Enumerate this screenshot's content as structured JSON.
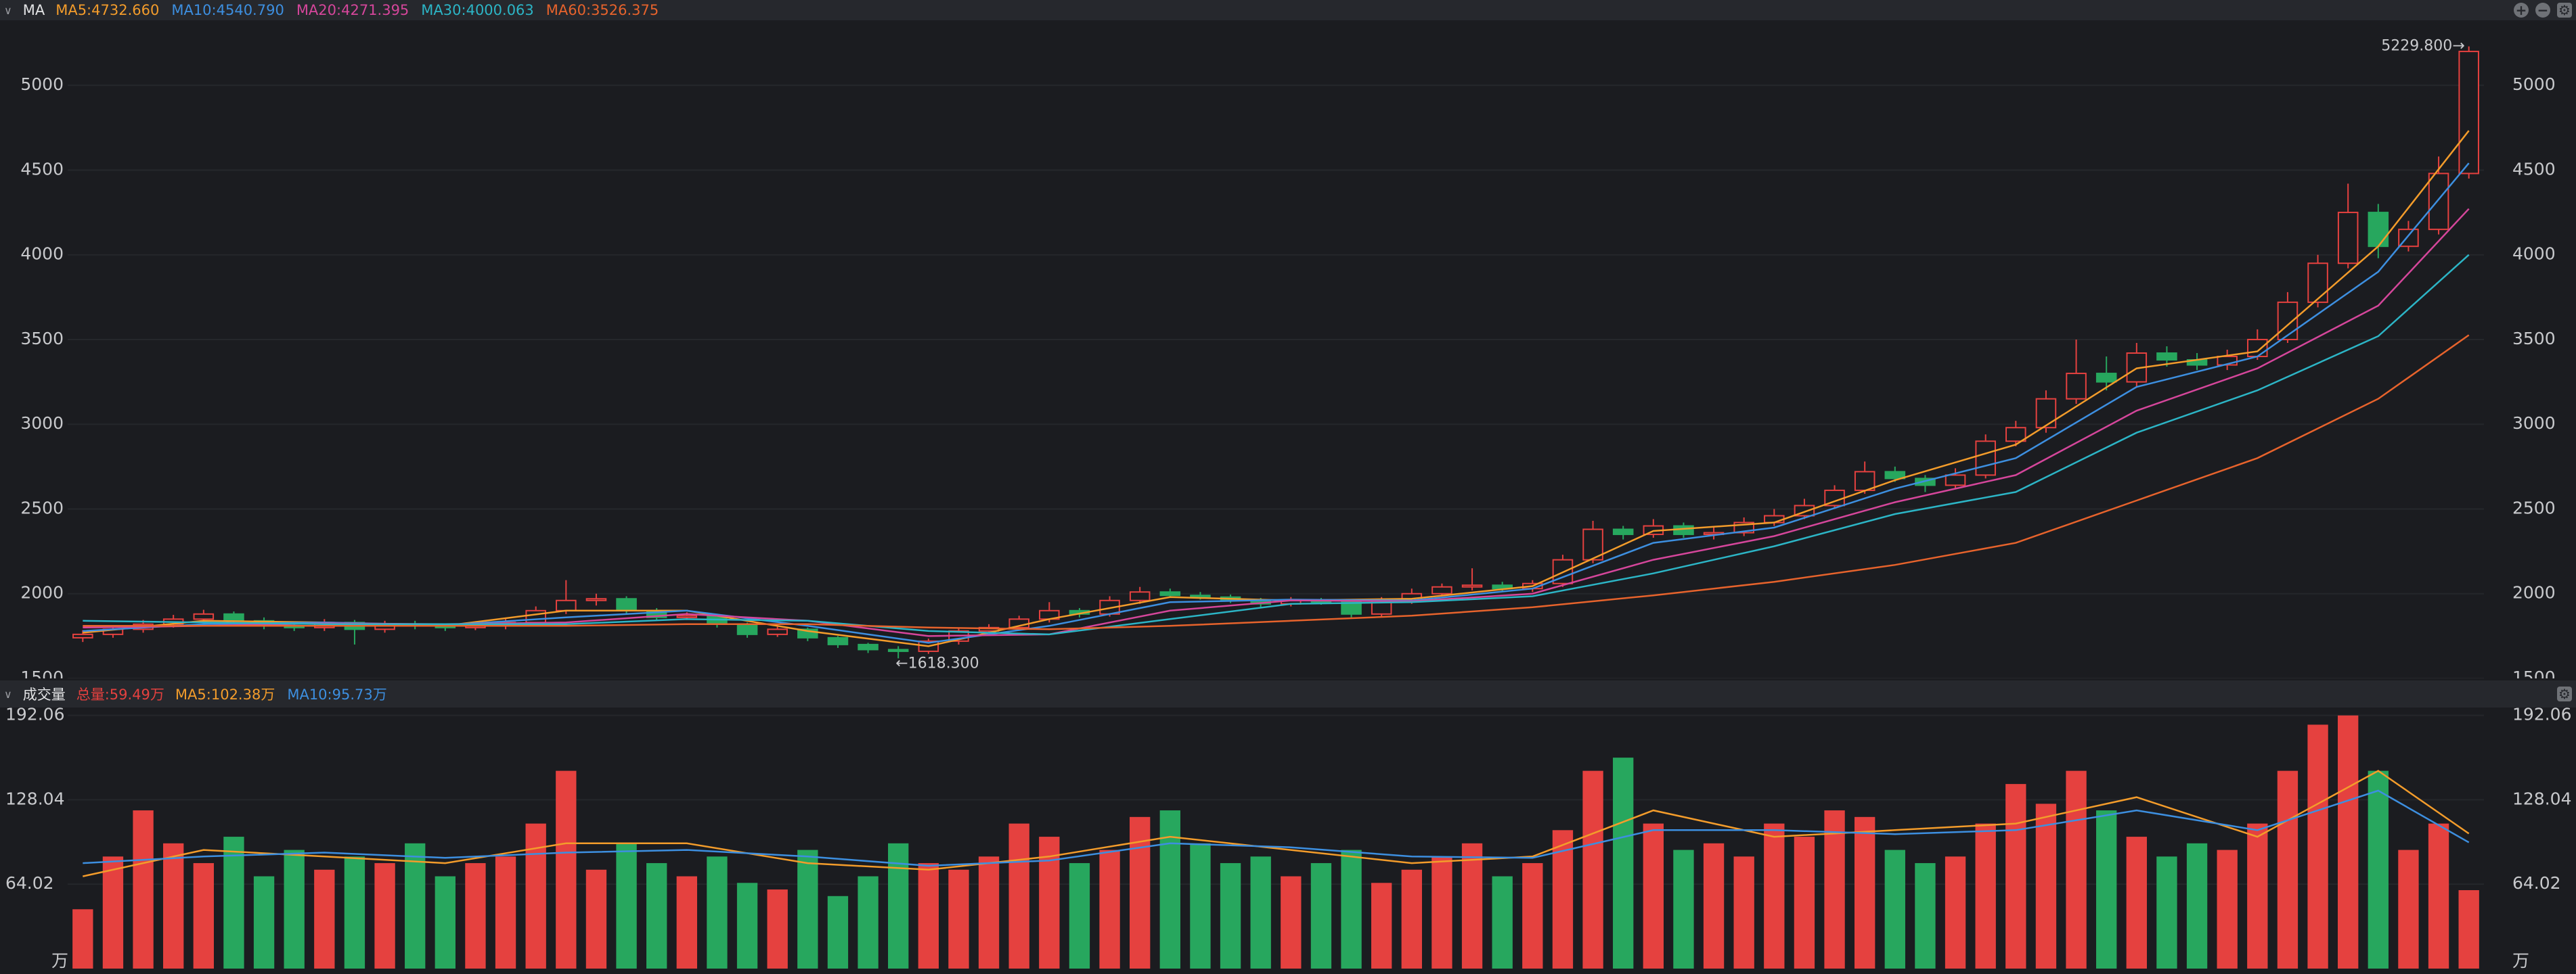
{
  "header": {
    "indicator": "MA"
  },
  "chart_data": [
    {
      "type": "candlestick",
      "open": [
        1740,
        1760,
        1790,
        1820,
        1850,
        1880,
        1840,
        1810,
        1800,
        1830,
        1790,
        1820,
        1810,
        1800,
        1810,
        1830,
        1900,
        1960,
        1970,
        1900,
        1860,
        1870,
        1820,
        1760,
        1790,
        1740,
        1700,
        1670,
        1660,
        1720,
        1780,
        1800,
        1850,
        1900,
        1880,
        1960,
        2010,
        1990,
        1980,
        1960,
        1940,
        1960,
        1950,
        1880,
        1960,
        2000,
        2040,
        2050,
        2030,
        2060,
        2200,
        2380,
        2350,
        2400,
        2350,
        2360,
        2420,
        2460,
        2520,
        2610,
        2720,
        2680,
        2640,
        2700,
        2900,
        2980,
        3150,
        3300,
        3250,
        3420,
        3380,
        3350,
        3400,
        3500,
        3720,
        3950,
        4250,
        4050,
        4150,
        4480
      ],
      "high": [
        1785,
        1810,
        1845,
        1875,
        1905,
        1895,
        1860,
        1830,
        1850,
        1845,
        1840,
        1840,
        1825,
        1830,
        1850,
        1925,
        2080,
        2000,
        1985,
        1915,
        1890,
        1880,
        1830,
        1805,
        1800,
        1750,
        1710,
        1690,
        1735,
        1795,
        1820,
        1870,
        1950,
        1915,
        1985,
        2040,
        2030,
        2010,
        1995,
        1975,
        1980,
        1975,
        1960,
        1980,
        2030,
        2060,
        2150,
        2070,
        2080,
        2230,
        2430,
        2400,
        2440,
        2420,
        2390,
        2450,
        2500,
        2560,
        2640,
        2780,
        2750,
        2700,
        2740,
        2940,
        3020,
        3200,
        3500,
        3400,
        3480,
        3460,
        3420,
        3440,
        3560,
        3780,
        4000,
        4420,
        4300,
        4200,
        4580,
        5229.8
      ],
      "low": [
        1715,
        1740,
        1770,
        1800,
        1830,
        1820,
        1790,
        1780,
        1780,
        1700,
        1770,
        1790,
        1780,
        1785,
        1790,
        1815,
        1880,
        1930,
        1880,
        1840,
        1845,
        1800,
        1740,
        1745,
        1720,
        1680,
        1650,
        1618.3,
        1645,
        1700,
        1765,
        1785,
        1830,
        1860,
        1865,
        1940,
        1975,
        1965,
        1945,
        1920,
        1925,
        1935,
        1860,
        1860,
        1940,
        1985,
        2020,
        2010,
        2010,
        2040,
        2180,
        2320,
        2330,
        2330,
        2320,
        2340,
        2400,
        2440,
        2500,
        2590,
        2660,
        2600,
        2620,
        2680,
        2870,
        2950,
        3120,
        3200,
        3220,
        3340,
        3320,
        3320,
        3380,
        3480,
        3690,
        3920,
        3980,
        4020,
        4120,
        4450
      ],
      "close": [
        1760,
        1790,
        1820,
        1850,
        1880,
        1840,
        1810,
        1800,
        1830,
        1790,
        1820,
        1810,
        1800,
        1810,
        1830,
        1900,
        1960,
        1970,
        1900,
        1860,
        1870,
        1820,
        1760,
        1790,
        1740,
        1700,
        1670,
        1660,
        1720,
        1780,
        1800,
        1850,
        1900,
        1880,
        1960,
        2010,
        1990,
        1980,
        1960,
        1940,
        1960,
        1950,
        1880,
        1960,
        2000,
        2040,
        2050,
        2030,
        2060,
        2200,
        2380,
        2350,
        2400,
        2350,
        2360,
        2420,
        2460,
        2520,
        2610,
        2720,
        2680,
        2640,
        2700,
        2900,
        2980,
        3150,
        3300,
        3250,
        3420,
        3380,
        3350,
        3400,
        3500,
        3720,
        3950,
        4250,
        4050,
        4150,
        4480,
        5200
      ],
      "up_color": "#e5413f",
      "down_color": "#27a75e",
      "ylim": [
        1500,
        5360
      ],
      "yticks": [
        1500,
        2000,
        2500,
        3000,
        3500,
        4000,
        4500,
        5000
      ],
      "grid": true,
      "max_label": "5229.800→",
      "min_label": "←1618.300",
      "ma_x": [
        0,
        4,
        8,
        12,
        16,
        20,
        24,
        28,
        32,
        36,
        40,
        44,
        48,
        52,
        56,
        60,
        64,
        68,
        72,
        76,
        79
      ],
      "series": [
        {
          "label": "MA5:4732.660",
          "color": "#f39c2b",
          "values": [
            1770,
            1840,
            1830,
            1810,
            1900,
            1900,
            1780,
            1690,
            1850,
            1980,
            1960,
            1970,
            2045,
            2370,
            2420,
            2670,
            2880,
            3330,
            3430,
            4050,
            4732.66
          ]
        },
        {
          "label": "MA10:4540.790",
          "color": "#3d8fe0",
          "values": [
            1780,
            1820,
            1830,
            1815,
            1860,
            1900,
            1810,
            1710,
            1810,
            1950,
            1965,
            1960,
            2030,
            2300,
            2390,
            2620,
            2800,
            3220,
            3400,
            3900,
            4540.79
          ]
        },
        {
          "label": "MA20:4271.395",
          "color": "#d5469b",
          "values": [
            1800,
            1810,
            1825,
            1820,
            1830,
            1880,
            1840,
            1750,
            1760,
            1900,
            1960,
            1955,
            2000,
            2200,
            2340,
            2540,
            2700,
            3080,
            3330,
            3700,
            4271.395
          ]
        },
        {
          "label": "MA30:4000.063",
          "color": "#2cb5c6",
          "values": [
            1840,
            1830,
            1820,
            1820,
            1820,
            1850,
            1840,
            1780,
            1760,
            1850,
            1940,
            1950,
            1985,
            2120,
            2280,
            2470,
            2600,
            2950,
            3200,
            3520,
            4000.063
          ]
        },
        {
          "label": "MA60:3526.375",
          "color": "#e7632c",
          "values": [
            1810,
            1810,
            1810,
            1810,
            1810,
            1820,
            1820,
            1800,
            1790,
            1810,
            1840,
            1870,
            1920,
            1990,
            2070,
            2170,
            2300,
            2550,
            2800,
            3150,
            3526.375
          ]
        }
      ]
    },
    {
      "type": "volume",
      "title": "成交量",
      "total_label": "总量:59.49万",
      "unit": "万",
      "values": [
        45,
        85,
        120,
        95,
        80,
        100,
        70,
        90,
        75,
        85,
        80,
        95,
        70,
        80,
        85,
        110,
        150,
        75,
        95,
        80,
        70,
        85,
        65,
        60,
        90,
        55,
        70,
        95,
        80,
        75,
        85,
        110,
        100,
        80,
        90,
        115,
        120,
        95,
        80,
        85,
        70,
        80,
        90,
        65,
        75,
        85,
        95,
        70,
        80,
        105,
        150,
        160,
        110,
        90,
        95,
        85,
        110,
        100,
        120,
        115,
        90,
        80,
        85,
        110,
        140,
        125,
        150,
        120,
        100,
        85,
        95,
        90,
        110,
        150,
        185,
        192,
        150,
        90,
        110,
        59.49
      ],
      "ylim": [
        0,
        197
      ],
      "yticks": [
        64.02,
        128.04,
        192.06
      ],
      "grid": true,
      "ma_x": [
        0,
        4,
        8,
        12,
        16,
        20,
        24,
        28,
        32,
        36,
        40,
        44,
        48,
        52,
        56,
        60,
        64,
        68,
        72,
        76,
        79
      ],
      "series": [
        {
          "label": "MA5:102.38万",
          "color": "#f39c2b",
          "values": [
            70,
            90,
            85,
            80,
            95,
            95,
            80,
            75,
            85,
            100,
            90,
            80,
            85,
            120,
            100,
            105,
            110,
            130,
            100,
            150,
            102.38
          ]
        },
        {
          "label": "MA10:95.73万",
          "color": "#3d8fe0",
          "values": [
            80,
            85,
            88,
            84,
            88,
            90,
            85,
            78,
            82,
            95,
            92,
            85,
            84,
            105,
            105,
            102,
            105,
            120,
            105,
            135,
            95.73
          ]
        }
      ]
    }
  ]
}
